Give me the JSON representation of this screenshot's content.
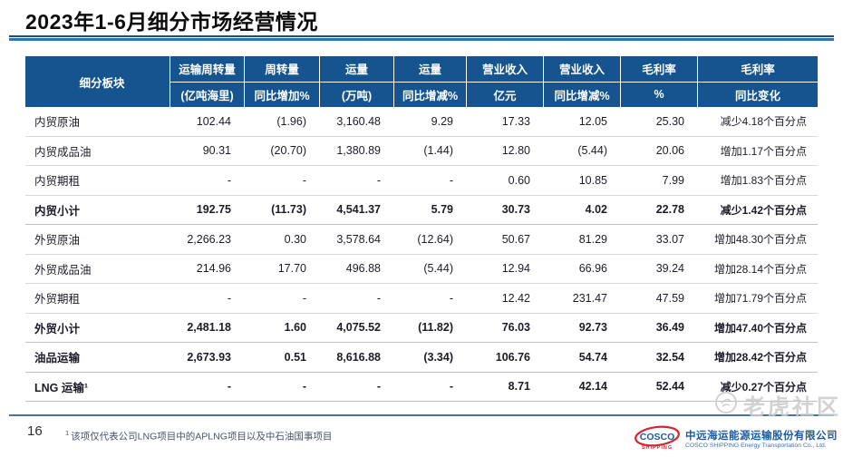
{
  "slide": {
    "title": "2023年1-6月细分市场经营情况",
    "page_number": "16",
    "footnote_marker": "1",
    "footnote": "该项仅代表公司LNG项目中的APLNG项目以及中石油国事项目",
    "watermark": "老虎社区"
  },
  "logo": {
    "mark_top": "COSCO",
    "mark_bottom": "SHIPPING",
    "company_cn": "中远海运能源运输股份有限公司",
    "company_en": "COSCO SHIPPING Energy Transportation Co., Ltd."
  },
  "colors": {
    "header_bg": "#15548e",
    "title_rule_dark": "#1f4e79",
    "title_rule_blue": "#2e74b5",
    "bottom_rule": "#47749e",
    "row_divider": "#d8d8d8",
    "logo_blue": "#1b5ba0",
    "logo_red": "#d22630",
    "watermark_gray": "#cbcbcb"
  },
  "table": {
    "header": {
      "cols": [
        {
          "line1": "细分板块",
          "line2": ""
        },
        {
          "line1": "运输周转量",
          "line2": "(亿吨海里)"
        },
        {
          "line1": "周转量",
          "line2": "同比增加%"
        },
        {
          "line1": "运量",
          "line2": "(万吨)"
        },
        {
          "line1": "运量",
          "line2": "同比增减%"
        },
        {
          "line1": "营业收入",
          "line2": "亿元"
        },
        {
          "line1": "营业收入",
          "line2": "同比增减%"
        },
        {
          "line1": "毛利率",
          "line2": "%"
        },
        {
          "line1": "毛利率",
          "line2": "同比变化"
        }
      ]
    },
    "rows": [
      {
        "label": "内贸原油",
        "bold": false,
        "values": [
          "102.44",
          "(1.96)",
          "3,160.48",
          "9.29",
          "17.33",
          "12.05",
          "25.30",
          "减少4.18个百分点"
        ]
      },
      {
        "label": "内贸成品油",
        "bold": false,
        "values": [
          "90.31",
          "(20.70)",
          "1,380.89",
          "(1.44)",
          "12.80",
          "(5.44)",
          "20.06",
          "增加1.17个百分点"
        ]
      },
      {
        "label": "内贸期租",
        "bold": false,
        "values": [
          "-",
          "-",
          "-",
          "-",
          "0.60",
          "10.85",
          "7.99",
          "增加1.83个百分点"
        ]
      },
      {
        "label": "内贸小计",
        "bold": true,
        "values": [
          "192.75",
          "(11.73)",
          "4,541.37",
          "5.79",
          "30.73",
          "4.02",
          "22.78",
          "减少1.42个百分点"
        ]
      },
      {
        "label": "外贸原油",
        "bold": false,
        "values": [
          "2,266.23",
          "0.30",
          "3,578.64",
          "(12.64)",
          "50.67",
          "81.29",
          "33.07",
          "增加48.30个百分点"
        ]
      },
      {
        "label": "外贸成品油",
        "bold": false,
        "values": [
          "214.96",
          "17.70",
          "496.88",
          "(5.44)",
          "12.94",
          "66.96",
          "39.24",
          "增加28.14个百分点"
        ]
      },
      {
        "label": "外贸期租",
        "bold": false,
        "values": [
          "-",
          "-",
          "-",
          "-",
          "12.42",
          "231.47",
          "47.59",
          "增加71.79个百分点"
        ]
      },
      {
        "label": "外贸小计",
        "bold": true,
        "values": [
          "2,481.18",
          "1.60",
          "4,075.52",
          "(11.82)",
          "76.03",
          "92.73",
          "36.49",
          "增加47.40个百分点"
        ]
      },
      {
        "label": "油品运输",
        "bold": true,
        "values": [
          "2,673.93",
          "0.51",
          "8,616.88",
          "(3.34)",
          "106.76",
          "54.74",
          "32.54",
          "增加28.42个百分点"
        ]
      },
      {
        "label": "LNG 运输¹",
        "bold": true,
        "values": [
          "-",
          "-",
          "-",
          "-",
          "8.71",
          "42.14",
          "52.44",
          "减少0.27个百分点"
        ]
      }
    ]
  }
}
